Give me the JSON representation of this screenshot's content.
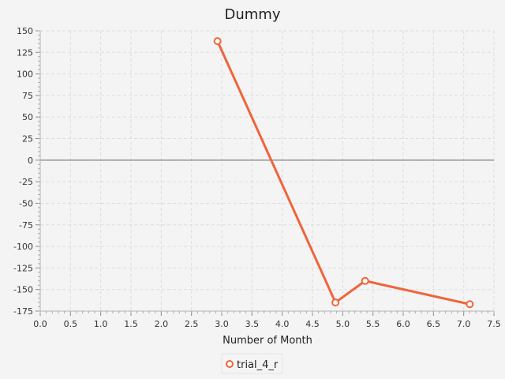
{
  "chart_data": {
    "type": "line",
    "title": "Dummy",
    "xlabel": "Number of Month",
    "ylabel": "",
    "xlim": [
      0,
      7.5
    ],
    "ylim": [
      -175,
      150
    ],
    "x_ticks": [
      "0.0",
      "0.5",
      "1.0",
      "1.5",
      "2.0",
      "2.5",
      "3.0",
      "3.5",
      "4.0",
      "4.5",
      "5.0",
      "5.5",
      "6.0",
      "6.5",
      "7.0",
      "7.5"
    ],
    "y_ticks": [
      "150",
      "125",
      "100",
      "75",
      "50",
      "25",
      "0",
      "-25",
      "-50",
      "-75",
      "-100",
      "-125",
      "-150",
      "-175"
    ],
    "grid": true,
    "legend_position": "bottom",
    "series": [
      {
        "name": "trial_4_r",
        "color": "#f0643a",
        "points": [
          {
            "x": 2.93,
            "y": 138
          },
          {
            "x": 4.88,
            "y": -165
          },
          {
            "x": 5.37,
            "y": -140
          },
          {
            "x": 7.1,
            "y": -167
          }
        ]
      }
    ]
  }
}
